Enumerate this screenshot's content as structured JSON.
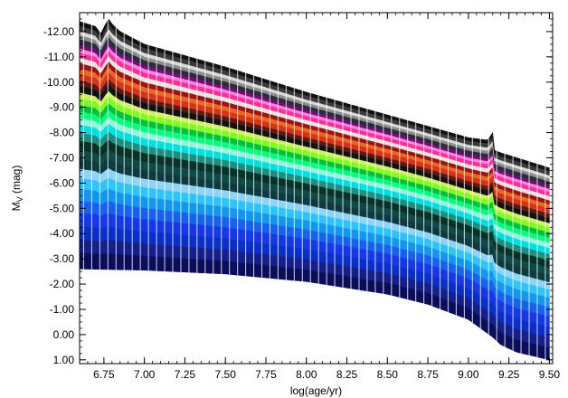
{
  "chart_data": {
    "type": "area",
    "title": "",
    "xlabel": "log(age/yr)",
    "ylabel": {
      "main": "M",
      "sub": "V",
      "unit": " (mag)"
    },
    "xlim": [
      6.6,
      9.52
    ],
    "ylim": [
      -12.75,
      1.15
    ],
    "y_axis_inverted": true,
    "xticks": [
      "6.75",
      "7.00",
      "7.25",
      "7.50",
      "7.75",
      "8.00",
      "8.25",
      "8.50",
      "8.75",
      "9.00",
      "9.25",
      "9.50"
    ],
    "yticks": [
      "-12.00",
      "-11.00",
      "-10.00",
      "-9.00",
      "-8.00",
      "-7.00",
      "-6.00",
      "-5.00",
      "-4.00",
      "-3.00",
      "-2.00",
      "-1.00",
      "0.00",
      "1.00"
    ],
    "grid": false,
    "legend": "none",
    "stripe_spacing_logage": 0.05,
    "upper_envelope": {
      "x": [
        6.6,
        6.7,
        6.73,
        6.76,
        6.78,
        6.8,
        6.85,
        7.0,
        7.5,
        8.0,
        8.5,
        9.0,
        9.12,
        9.15,
        9.16,
        9.2,
        9.3,
        9.5
      ],
      "y": [
        -12.4,
        -12.2,
        -11.9,
        -12.3,
        -12.5,
        -12.3,
        -12.0,
        -11.5,
        -10.6,
        -9.6,
        -8.7,
        -7.8,
        -7.7,
        -8.0,
        -7.3,
        -7.2,
        -7.0,
        -6.6
      ]
    },
    "lower_envelope": {
      "x": [
        6.6,
        7.0,
        7.5,
        8.0,
        8.5,
        8.75,
        9.0,
        9.15,
        9.2,
        9.3,
        9.5
      ],
      "y": [
        -2.6,
        -2.55,
        -2.4,
        -2.1,
        -1.6,
        -1.2,
        -0.6,
        0.1,
        0.4,
        0.7,
        1.0
      ]
    },
    "bands": [
      {
        "color": "#0a0e5a",
        "frac": 0.06
      },
      {
        "color": "#141f8a",
        "frac": 0.05
      },
      {
        "color": "#0a2fc8",
        "frac": 0.05
      },
      {
        "color": "#1638e6",
        "frac": 0.05
      },
      {
        "color": "#1662ee",
        "frac": 0.045
      },
      {
        "color": "#1296ee",
        "frac": 0.045
      },
      {
        "color": "#2ec3fa",
        "frac": 0.04
      },
      {
        "color": "#8ed4f6",
        "frac": 0.035
      },
      {
        "color": "#0d3a40",
        "frac": 0.035
      },
      {
        "color": "#0f4a46",
        "frac": 0.035
      },
      {
        "color": "#063227",
        "frac": 0.035
      },
      {
        "color": "#1c8f80",
        "frac": 0.03
      },
      {
        "color": "#00e0e0",
        "frac": 0.03
      },
      {
        "color": "#94f4de",
        "frac": 0.025
      },
      {
        "color": "#00ff7a",
        "frac": 0.025
      },
      {
        "color": "#00c23a",
        "frac": 0.025
      },
      {
        "color": "#7dff1e",
        "frac": 0.025
      },
      {
        "color": "#d2f064",
        "frac": 0.02
      },
      {
        "color": "#111111",
        "frac": 0.025
      },
      {
        "color": "#5a1a0e",
        "frac": 0.02
      },
      {
        "color": "#d93218",
        "frac": 0.025
      },
      {
        "color": "#f0661e",
        "frac": 0.02
      },
      {
        "color": "#9a1414",
        "frac": 0.02
      },
      {
        "color": "#e7e3df",
        "frac": 0.02
      },
      {
        "color": "#ff2e96",
        "frac": 0.02
      },
      {
        "color": "#ff80e0",
        "frac": 0.015
      },
      {
        "color": "#7a0a7a",
        "frac": 0.015
      },
      {
        "color": "#2b2b3b",
        "frac": 0.02
      },
      {
        "color": "#8c8c8c",
        "frac": 0.015
      },
      {
        "color": "#d9d9d9",
        "frac": 0.015
      },
      {
        "color": "#3a3a3a",
        "frac": 0.02
      },
      {
        "color": "#111111",
        "frac": 0.015
      }
    ]
  }
}
